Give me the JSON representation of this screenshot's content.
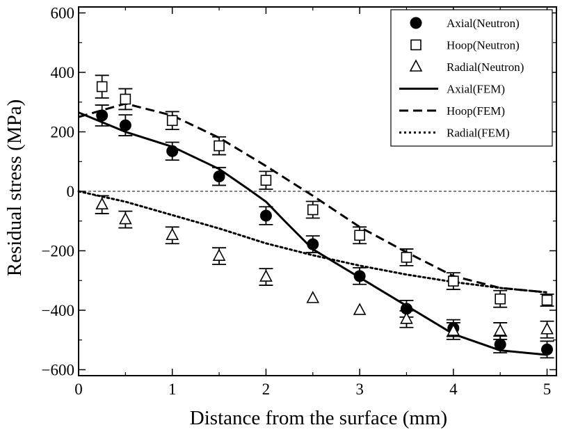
{
  "chart_data": {
    "type": "scatter",
    "xlabel": "Distance from the surface (mm)",
    "ylabel": "Residual stress (MPa)",
    "xlim": [
      0,
      5.1
    ],
    "ylim": [
      -620,
      620
    ],
    "xticks": [
      0,
      1,
      2,
      3,
      4,
      5
    ],
    "yticks": [
      -600,
      -400,
      -200,
      0,
      200,
      400,
      600
    ],
    "xtick_labels": [
      "0",
      "1",
      "2",
      "3",
      "4",
      "5"
    ],
    "ytick_labels": [
      "−600",
      "−400",
      "−200",
      "0",
      "200",
      "400",
      "600"
    ],
    "zero_line": true,
    "grid": false,
    "legend_position": "top-right",
    "series": [
      {
        "name": "Axial(Neutron)",
        "kind": "points",
        "marker": "filled-circle",
        "x": [
          0.25,
          0.5,
          1.0,
          1.5,
          2.0,
          2.5,
          3.0,
          3.5,
          4.0,
          4.5,
          5.0
        ],
        "y": [
          255,
          222,
          135,
          50,
          -82,
          -178,
          -285,
          -395,
          -460,
          -515,
          -532
        ],
        "err": [
          35,
          35,
          30,
          30,
          30,
          28,
          28,
          28,
          28,
          28,
          28
        ]
      },
      {
        "name": "Hoop(Neutron)",
        "kind": "points",
        "marker": "open-square",
        "x": [
          0.25,
          0.5,
          1.0,
          1.5,
          2.0,
          2.5,
          3.0,
          3.5,
          4.0,
          4.5,
          5.0
        ],
        "y": [
          352,
          310,
          238,
          153,
          37,
          -62,
          -148,
          -222,
          -302,
          -362,
          -366
        ],
        "err": [
          38,
          35,
          30,
          30,
          30,
          28,
          28,
          28,
          28,
          28,
          20
        ]
      },
      {
        "name": "Radial(Neutron)",
        "kind": "points",
        "marker": "open-triangle",
        "x": [
          0.25,
          0.5,
          1.0,
          1.5,
          2.0,
          2.5,
          3.0,
          3.5,
          4.0,
          4.5,
          5.0
        ],
        "y": [
          -45,
          -95,
          -148,
          -218,
          -288,
          -360,
          -400,
          -430,
          -470,
          -470,
          -465
        ],
        "err": [
          30,
          28,
          28,
          28,
          28,
          0,
          0,
          28,
          28,
          28,
          28
        ]
      },
      {
        "name": "Axial(FEM)",
        "kind": "line",
        "dash": "solid",
        "x": [
          0,
          0.5,
          1.0,
          1.5,
          1.8,
          2.0,
          2.2,
          2.5,
          3.0,
          3.5,
          4.0,
          4.5,
          5.0
        ],
        "y": [
          265,
          200,
          150,
          75,
          10,
          -35,
          -100,
          -195,
          -290,
          -385,
          -480,
          -535,
          -550
        ]
      },
      {
        "name": "Hoop(FEM)",
        "kind": "line",
        "dash": "dashed",
        "x": [
          0,
          0.5,
          1.0,
          1.5,
          2.0,
          2.5,
          3.0,
          3.5,
          4.0,
          4.5,
          5.0
        ],
        "y": [
          250,
          295,
          255,
          180,
          85,
          -15,
          -120,
          -205,
          -285,
          -325,
          -340
        ]
      },
      {
        "name": "Radial(FEM)",
        "kind": "line",
        "dash": "dotted",
        "x": [
          0,
          0.5,
          1.0,
          1.5,
          2.0,
          2.5,
          3.0,
          3.5,
          4.0,
          4.5,
          5.0
        ],
        "y": [
          0,
          -35,
          -80,
          -125,
          -175,
          -215,
          -250,
          -280,
          -305,
          -325,
          -340
        ]
      }
    ]
  }
}
